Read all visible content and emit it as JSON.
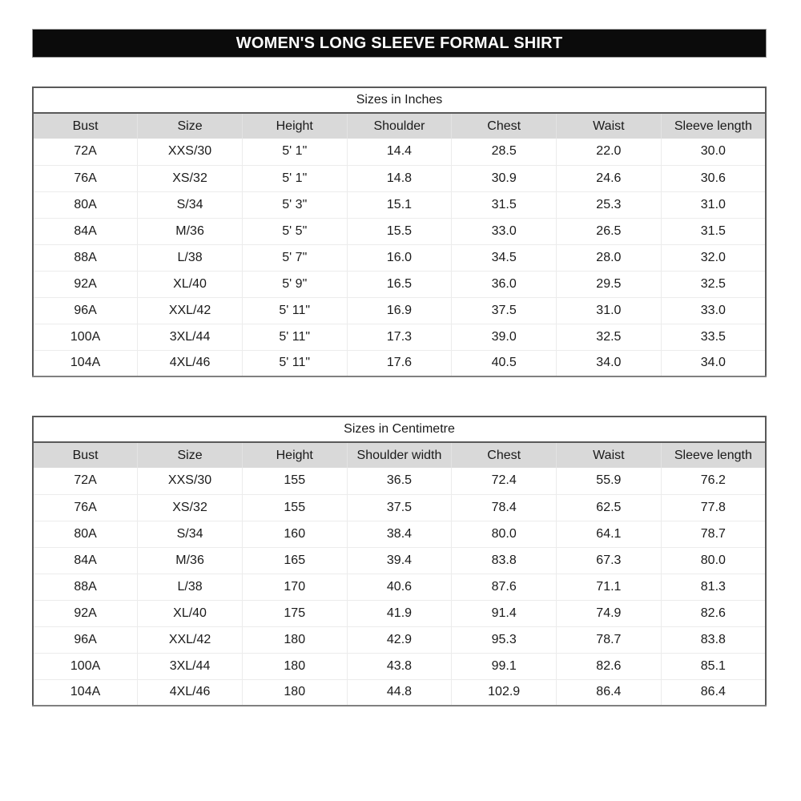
{
  "page": {
    "title": "WOMEN'S LONG SLEEVE FORMAL SHIRT"
  },
  "tables": {
    "inches": {
      "title": "Sizes in Inches",
      "columns": [
        "Bust",
        "Size",
        "Height",
        "Shoulder",
        "Chest",
        "Waist",
        "Sleeve length"
      ],
      "rows": [
        [
          "72A",
          "XXS/30",
          "5' 1\"",
          "14.4",
          "28.5",
          "22.0",
          "30.0"
        ],
        [
          "76A",
          "XS/32",
          "5' 1\"",
          "14.8",
          "30.9",
          "24.6",
          "30.6"
        ],
        [
          "80A",
          "S/34",
          "5' 3\"",
          "15.1",
          "31.5",
          "25.3",
          "31.0"
        ],
        [
          "84A",
          "M/36",
          "5' 5\"",
          "15.5",
          "33.0",
          "26.5",
          "31.5"
        ],
        [
          "88A",
          "L/38",
          "5' 7\"",
          "16.0",
          "34.5",
          "28.0",
          "32.0"
        ],
        [
          "92A",
          "XL/40",
          "5' 9\"",
          "16.5",
          "36.0",
          "29.5",
          "32.5"
        ],
        [
          "96A",
          "XXL/42",
          "5' 11\"",
          "16.9",
          "37.5",
          "31.0",
          "33.0"
        ],
        [
          "100A",
          "3XL/44",
          "5' 11\"",
          "17.3",
          "39.0",
          "32.5",
          "33.5"
        ],
        [
          "104A",
          "4XL/46",
          "5' 11\"",
          "17.6",
          "40.5",
          "34.0",
          "34.0"
        ]
      ]
    },
    "centimetre": {
      "title": "Sizes in Centimetre",
      "columns": [
        "Bust",
        "Size",
        "Height",
        "Shoulder width",
        "Chest",
        "Waist",
        "Sleeve length"
      ],
      "rows": [
        [
          "72A",
          "XXS/30",
          "155",
          "36.5",
          "72.4",
          "55.9",
          "76.2"
        ],
        [
          "76A",
          "XS/32",
          "155",
          "37.5",
          "78.4",
          "62.5",
          "77.8"
        ],
        [
          "80A",
          "S/34",
          "160",
          "38.4",
          "80.0",
          "64.1",
          "78.7"
        ],
        [
          "84A",
          "M/36",
          "165",
          "39.4",
          "83.8",
          "67.3",
          "80.0"
        ],
        [
          "88A",
          "L/38",
          "170",
          "40.6",
          "87.6",
          "71.1",
          "81.3"
        ],
        [
          "92A",
          "XL/40",
          "175",
          "41.9",
          "91.4",
          "74.9",
          "82.6"
        ],
        [
          "96A",
          "XXL/42",
          "180",
          "42.9",
          "95.3",
          "78.7",
          "83.8"
        ],
        [
          "100A",
          "3XL/44",
          "180",
          "43.8",
          "99.1",
          "82.6",
          "85.1"
        ],
        [
          "104A",
          "4XL/46",
          "180",
          "44.8",
          "102.9",
          "86.4",
          "86.4"
        ]
      ]
    }
  },
  "colors": {
    "banner_bg": "#0b0b0b",
    "banner_text": "#ffffff",
    "header_row_bg": "#d9d9d9",
    "border_dark": "#595959",
    "border_bottom": "#808080",
    "grid_light": "#ececec"
  }
}
